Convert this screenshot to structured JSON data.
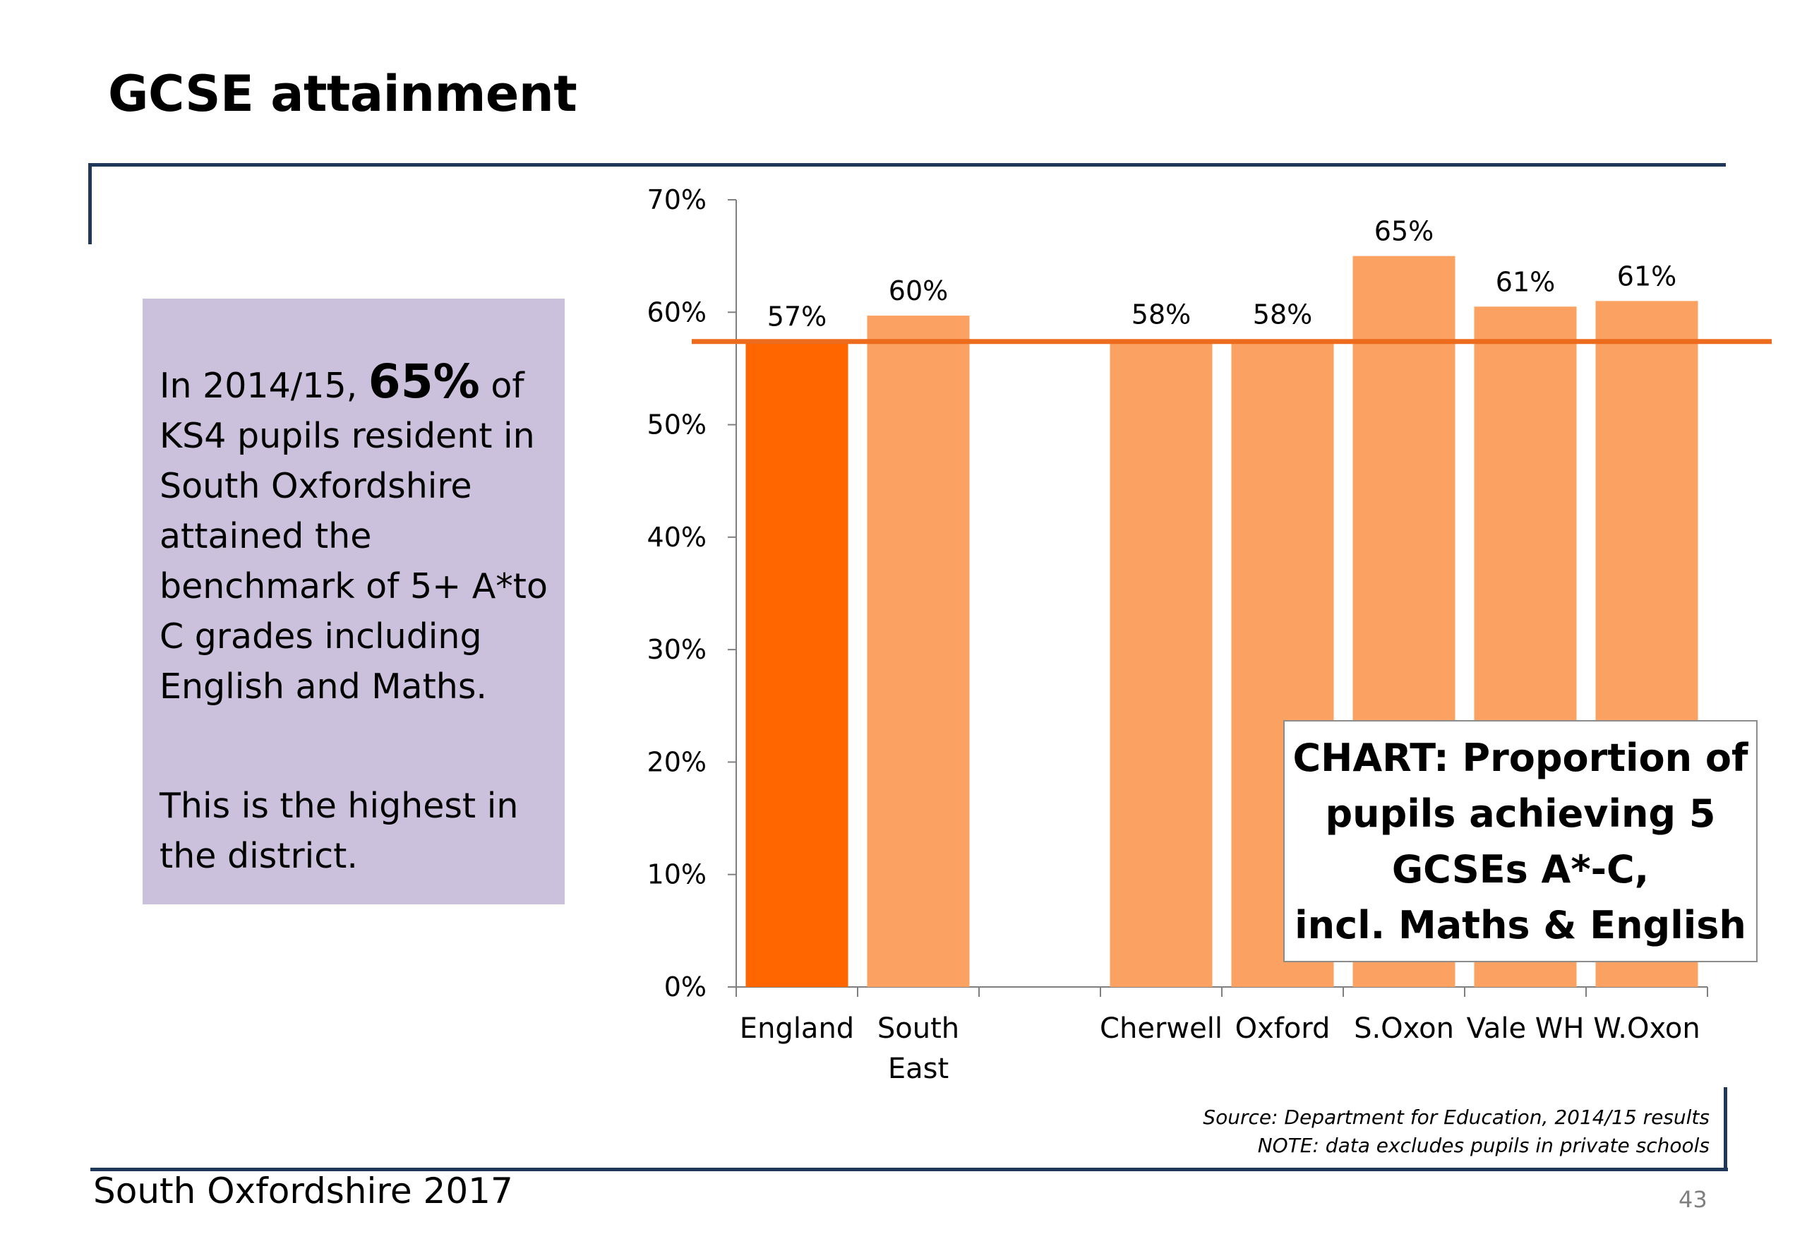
{
  "slide": {
    "title": "GCSE attainment",
    "footer_left": "South Oxfordshire  2017",
    "page_number": "43"
  },
  "callout": {
    "line_prefix": "In 2014/15, ",
    "highlight": "65%",
    "line_rest": " of KS4 pupils resident in South Oxfordshire attained the benchmark of 5+ A*to C grades including English and Maths.",
    "paragraph2": "This is the highest in the district."
  },
  "chart_box": {
    "line1": "CHART: Proportion of",
    "line2": "pupils achieving 5",
    "line3": "GCSEs A*-C,",
    "line4": "incl. Maths & English"
  },
  "source": {
    "line1": "Source: Department for Education, 2014/15 results",
    "line2": "NOTE: data excludes pupils in private schools"
  },
  "colors": {
    "highlight_bar": "#ff6600",
    "bar": "#fba262",
    "reference_line": "#ed6b1c",
    "callout_bg": "#ccc1dc",
    "rule": "#1f3859"
  },
  "chart_data": {
    "type": "bar",
    "title": "",
    "xlabel": "",
    "ylabel": "",
    "ylim": [
      0,
      70
    ],
    "y_ticks": [
      "0%",
      "10%",
      "20%",
      "30%",
      "40%",
      "50%",
      "60%",
      "70%"
    ],
    "categories": [
      [
        "England"
      ],
      [
        "South",
        "East"
      ],
      [
        ""
      ],
      [
        "Cherwell"
      ],
      [
        "Oxford"
      ],
      [
        "S.Oxon"
      ],
      [
        "Vale WH"
      ],
      [
        "W.Oxon"
      ]
    ],
    "values": [
      57.4,
      59.7,
      null,
      57.6,
      57.6,
      65.0,
      60.5,
      61.0
    ],
    "value_labels": [
      "57%",
      "60%",
      "",
      "58%",
      "58%",
      "65%",
      "61%",
      "61%"
    ],
    "highlight_index": 0,
    "reference_line": 57.4,
    "grid": false,
    "legend": "none"
  }
}
